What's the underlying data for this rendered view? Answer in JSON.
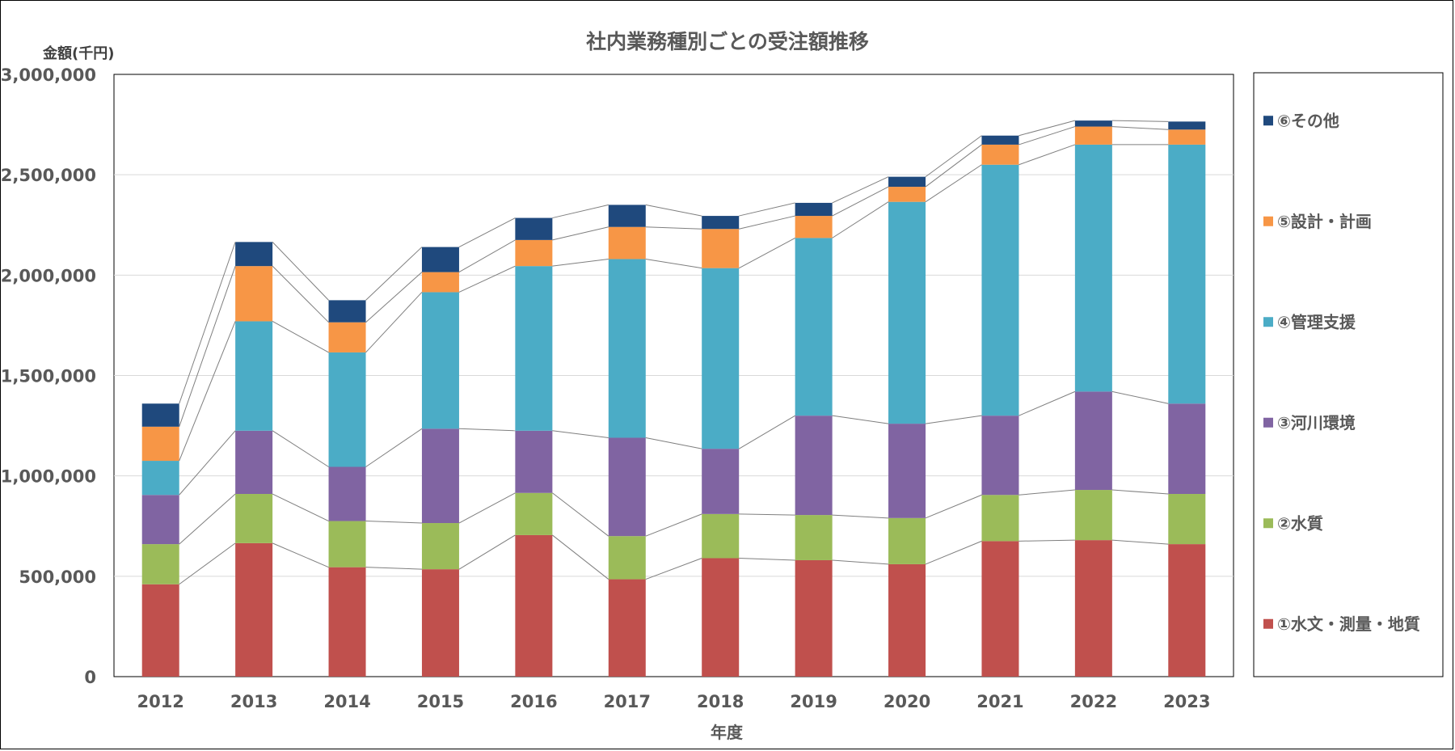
{
  "chart_data": {
    "type": "bar",
    "stacked": true,
    "title": "社内業務種別ごとの受注額推移",
    "ylabel": "金額(千円)",
    "xlabel": "年度",
    "ylim": [
      0,
      3000000
    ],
    "yticks": [
      0,
      500000,
      1000000,
      1500000,
      2000000,
      2500000,
      3000000
    ],
    "ytick_labels": [
      "0",
      "500,000",
      "1,000,000",
      "1,500,000",
      "2,000,000",
      "2,500,000",
      "3,000,000"
    ],
    "grid": true,
    "series_lines": true,
    "legend_position": "right",
    "categories": [
      "2012",
      "2013",
      "2014",
      "2015",
      "2016",
      "2017",
      "2018",
      "2019",
      "2020",
      "2021",
      "2022",
      "2023"
    ],
    "series": [
      {
        "name": "①水文・測量・地質",
        "color": "#C0504D",
        "values": [
          460000,
          665000,
          545000,
          535000,
          705000,
          485000,
          590000,
          580000,
          560000,
          675000,
          680000,
          660000
        ]
      },
      {
        "name": "②水質",
        "color": "#9BBB59",
        "values": [
          200000,
          245000,
          230000,
          230000,
          210000,
          215000,
          220000,
          225000,
          230000,
          230000,
          250000,
          250000
        ]
      },
      {
        "name": "③河川環境",
        "color": "#8064A2",
        "values": [
          245000,
          315000,
          270000,
          470000,
          310000,
          490000,
          325000,
          495000,
          470000,
          395000,
          490000,
          450000
        ]
      },
      {
        "name": "④管理支援",
        "color": "#4BACC6",
        "values": [
          170000,
          545000,
          570000,
          680000,
          820000,
          890000,
          900000,
          885000,
          1105000,
          1250000,
          1230000,
          1290000
        ]
      },
      {
        "name": "⑤設計・計画",
        "color": "#F79646",
        "values": [
          170000,
          275000,
          150000,
          100000,
          130000,
          160000,
          195000,
          110000,
          75000,
          100000,
          90000,
          75000
        ]
      },
      {
        "name": "⑥その他",
        "color": "#1F497D",
        "values": [
          115000,
          120000,
          110000,
          125000,
          110000,
          110000,
          65000,
          65000,
          50000,
          45000,
          30000,
          40000
        ]
      }
    ]
  }
}
